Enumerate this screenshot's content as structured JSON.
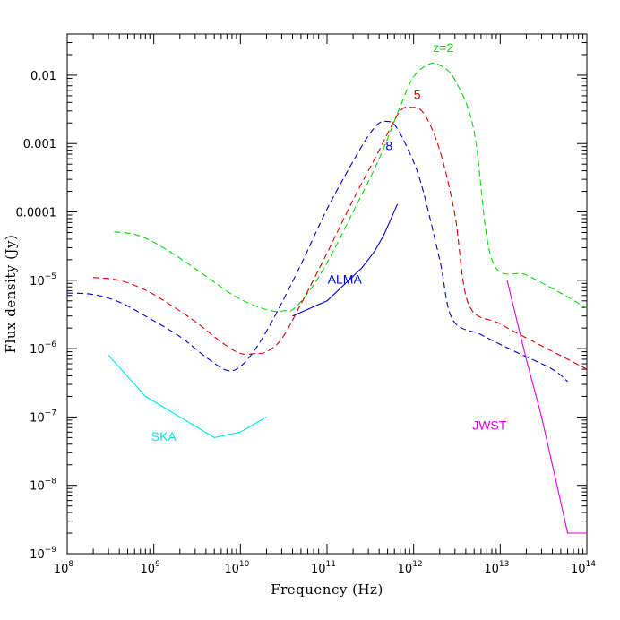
{
  "chart_data": {
    "type": "line",
    "xlabel": "Frequency (Hz)",
    "ylabel": "Flux density (Jy)",
    "x_scale": "log",
    "y_scale": "log",
    "xlim": [
      100000000.0,
      100000000000000.0
    ],
    "ylim": [
      1e-09,
      0.04
    ],
    "x_ticks": [
      {
        "value": 100000000.0,
        "label": "10",
        "exp": "8"
      },
      {
        "value": 1000000000.0,
        "label": "10",
        "exp": "9"
      },
      {
        "value": 10000000000.0,
        "label": "10",
        "exp": "10"
      },
      {
        "value": 100000000000.0,
        "label": "10",
        "exp": "11"
      },
      {
        "value": 1000000000000.0,
        "label": "10",
        "exp": "12"
      },
      {
        "value": 10000000000000.0,
        "label": "10",
        "exp": "13"
      },
      {
        "value": 100000000000000.0,
        "label": "10",
        "exp": "14"
      }
    ],
    "y_ticks": [
      {
        "value": 1e-09,
        "label": "10",
        "exp": "−9"
      },
      {
        "value": 1e-08,
        "label": "10",
        "exp": "−8"
      },
      {
        "value": 1e-07,
        "label": "10",
        "exp": "−7"
      },
      {
        "value": 1e-06,
        "label": "10",
        "exp": "−6"
      },
      {
        "value": 1e-05,
        "label": "10",
        "exp": "−5"
      },
      {
        "value": 0.0001,
        "label": "0.0001",
        "exp": ""
      },
      {
        "value": 0.001,
        "label": "0.001",
        "exp": ""
      },
      {
        "value": 0.01,
        "label": "0.01",
        "exp": ""
      }
    ],
    "grid": false,
    "series": [
      {
        "name": "z=2",
        "color": "#00dd00",
        "dashed": true,
        "label_at": [
          2200000000000.0,
          0.022
        ],
        "points": [
          [
            350000000.0,
            5.1e-05
          ],
          [
            600000000.0,
            4.7e-05
          ],
          [
            1000000000.0,
            3.6e-05
          ],
          [
            2000000000.0,
            2.1e-05
          ],
          [
            4000000000.0,
            1.15e-05
          ],
          [
            8000000000.0,
            6.2e-06
          ],
          [
            15000000000.0,
            4.2e-06
          ],
          [
            25000000000.0,
            3.5e-06
          ],
          [
            32000000000.0,
            3.6e-06
          ],
          [
            40000000000.0,
            3.7e-06
          ],
          [
            60000000000.0,
            6.5e-06
          ],
          [
            100000000000.0,
            1.8e-05
          ],
          [
            200000000000.0,
            0.0001
          ],
          [
            400000000000.0,
            0.0006
          ],
          [
            700000000000.0,
            0.0035
          ],
          [
            1000000000000.0,
            0.0095
          ],
          [
            1500000000000.0,
            0.0145
          ],
          [
            2000000000000.0,
            0.014
          ],
          [
            3000000000000.0,
            0.0085
          ],
          [
            5000000000000.0,
            0.0015
          ],
          [
            8000000000000.0,
            2e-05
          ],
          [
            20000000000000.0,
            1.2e-05
          ],
          [
            50000000000000.0,
            6.5e-06
          ],
          [
            100000000000000.0,
            3.9e-06
          ]
        ]
      },
      {
        "name": "5",
        "color": "#dd0000",
        "dashed": true,
        "label_at": [
          1100000000000.0,
          0.0045
        ],
        "points": [
          [
            200000000.0,
            1.1e-05
          ],
          [
            400000000.0,
            1e-05
          ],
          [
            800000000.0,
            7.2e-06
          ],
          [
            1500000000.0,
            4.5e-06
          ],
          [
            3000000000.0,
            2.5e-06
          ],
          [
            6000000000.0,
            1.25e-06
          ],
          [
            10000000000.0,
            8.5e-07
          ],
          [
            15000000000.0,
            8.5e-07
          ],
          [
            20000000000.0,
            9e-07
          ],
          [
            30000000000.0,
            1.4e-06
          ],
          [
            50000000000.0,
            4.5e-06
          ],
          [
            100000000000.0,
            2.5e-05
          ],
          [
            200000000000.0,
            0.00015
          ],
          [
            400000000000.0,
            0.0008
          ],
          [
            500000000000.0,
            0.0014
          ],
          [
            700000000000.0,
            0.003
          ],
          [
            900000000000.0,
            0.0034
          ],
          [
            1300000000000.0,
            0.0028
          ],
          [
            2000000000000.0,
            0.0008
          ],
          [
            3000000000000.0,
            9e-05
          ],
          [
            4300000000000.0,
            4.5e-06
          ],
          [
            10000000000000.0,
            2.3e-06
          ],
          [
            30000000000000.0,
            1.1e-06
          ],
          [
            60000000000000.0,
            7e-07
          ],
          [
            100000000000000.0,
            5e-07
          ]
        ]
      },
      {
        "name": "8",
        "color": "#0000cc",
        "dashed": true,
        "label_at": [
          520000000000.0,
          0.0008
        ],
        "points": [
          [
            100000000.0,
            6.5e-06
          ],
          [
            200000000.0,
            6.2e-06
          ],
          [
            400000000.0,
            4.8e-06
          ],
          [
            800000000.0,
            3e-06
          ],
          [
            2000000000.0,
            1.5e-06
          ],
          [
            4000000000.0,
            7.5e-07
          ],
          [
            7000000000.0,
            4.8e-07
          ],
          [
            10000000000.0,
            5.5e-07
          ],
          [
            15000000000.0,
            1e-06
          ],
          [
            25000000000.0,
            3e-06
          ],
          [
            50000000000.0,
            1.7e-05
          ],
          [
            100000000000.0,
            0.00011
          ],
          [
            200000000000.0,
            0.00055
          ],
          [
            300000000000.0,
            0.0013
          ],
          [
            400000000000.0,
            0.002
          ],
          [
            500000000000.0,
            0.0021
          ],
          [
            600000000000.0,
            0.0019
          ],
          [
            800000000000.0,
            0.001
          ],
          [
            1200000000000.0,
            0.00028
          ],
          [
            2000000000000.0,
            2e-05
          ],
          [
            2800000000000.0,
            2.7e-06
          ],
          [
            6000000000000.0,
            1.6e-06
          ],
          [
            15000000000000.0,
            9e-07
          ],
          [
            40000000000000.0,
            5e-07
          ],
          [
            60000000000000.0,
            3.3e-07
          ]
        ]
      },
      {
        "name": "ALMA",
        "color": "#0000cc",
        "dashed": false,
        "label_at": [
          160000000000.0,
          9e-06
        ],
        "points": [
          [
            40000000000.0,
            3e-06
          ],
          [
            100000000000.0,
            5e-06
          ],
          [
            250000000000.0,
            1.5e-05
          ],
          [
            350000000000.0,
            2.6e-05
          ],
          [
            450000000000.0,
            4.5e-05
          ],
          [
            650000000000.0,
            0.00013
          ]
        ]
      },
      {
        "name": "SKA",
        "color": "#00e5ee",
        "dashed": false,
        "label_at": [
          1300000000.0,
          4.5e-08
        ],
        "points": [
          [
            300000000.0,
            8e-07
          ],
          [
            800000000.0,
            2e-07
          ],
          [
            2000000000.0,
            1e-07
          ],
          [
            5000000000.0,
            5e-08
          ],
          [
            10000000000.0,
            6e-08
          ],
          [
            20000000000.0,
            1e-07
          ]
        ]
      },
      {
        "name": "JWST",
        "color": "#dd00dd",
        "dashed": false,
        "label_at": [
          7500000000000.0,
          6.5e-08
        ],
        "points": [
          [
            12000000000000.0,
            1e-05
          ],
          [
            20000000000000.0,
            7e-07
          ],
          [
            30000000000000.0,
            1e-07
          ],
          [
            40000000000000.0,
            2e-08
          ],
          [
            60000000000000.0,
            2e-09
          ],
          [
            100000000000000.0,
            2e-09
          ]
        ]
      }
    ]
  }
}
